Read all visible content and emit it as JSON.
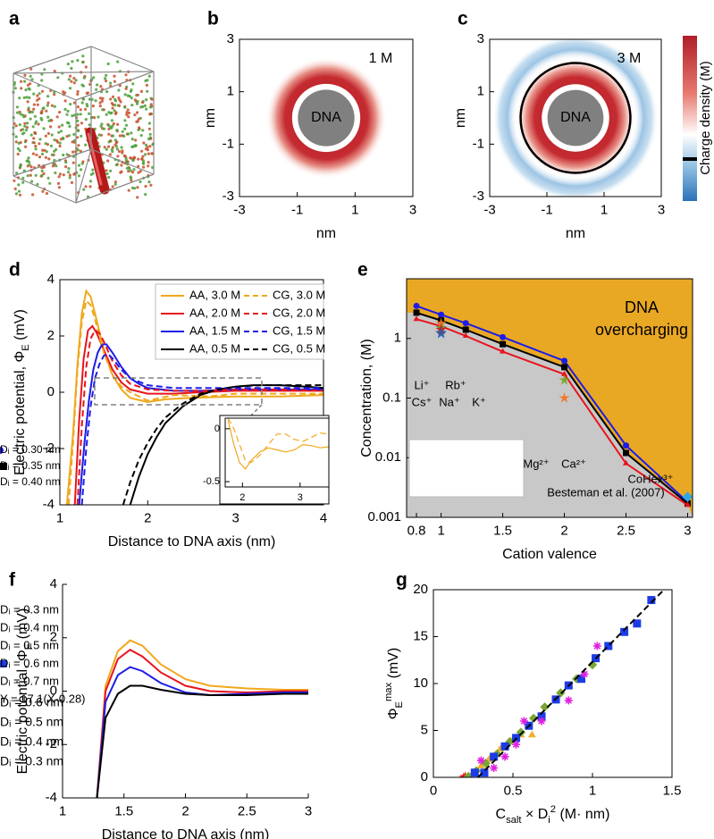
{
  "chart_data": [
    {
      "type": "render",
      "panel_label": "a"
    },
    {
      "type": "heatmap",
      "panel_label": "b",
      "label": "1 M",
      "center_label": "DNA",
      "xlabel": [
        {
          "text": "nm"
        }
      ],
      "ylabel": [
        {
          "text": "nm"
        }
      ],
      "xlim": [
        -3,
        3
      ],
      "ylim": [
        -3,
        3
      ],
      "xticks": [
        -3,
        -1,
        1,
        3
      ],
      "yticks": [
        -3,
        -1,
        1,
        3
      ],
      "halo": false
    },
    {
      "type": "heatmap",
      "panel_label": "c",
      "label": "3 M",
      "center_label": "DNA",
      "xlabel": [
        {
          "text": "nm"
        }
      ],
      "ylabel": [
        {
          "text": "nm"
        }
      ],
      "xlim": [
        -3,
        3
      ],
      "ylim": [
        -3,
        3
      ],
      "xticks": [
        -3,
        -1,
        1,
        3
      ],
      "yticks": [
        -3,
        -1,
        1,
        3
      ],
      "halo": true,
      "colorbar_label": "Charge density (M)"
    },
    {
      "type": "line",
      "panel_label": "d",
      "xlabel": [
        {
          "text": "Distance to DNA axis (nm)"
        }
      ],
      "ylabel": [
        {
          "text": "Electric potential, Φ"
        },
        {
          "text": "E",
          "shift": "sub"
        },
        {
          "text": " (mV)"
        }
      ],
      "xlim": [
        1,
        4
      ],
      "ylim": [
        -4,
        4
      ],
      "xticks": [
        1,
        2,
        3,
        4
      ],
      "yticks": [
        -4,
        -2,
        0,
        2,
        4
      ],
      "frame": "box",
      "series": [
        {
          "name": "AA, 3.0 M",
          "color": "#f0a81c",
          "dash": false,
          "x": [
            1.08,
            1.15,
            1.2,
            1.25,
            1.3,
            1.35,
            1.4,
            1.5,
            1.6,
            1.7,
            1.8,
            2.0,
            2.2,
            2.5,
            3.0,
            3.5,
            4.0
          ],
          "values": [
            -4,
            -1.5,
            1.0,
            2.8,
            3.6,
            3.4,
            2.8,
            1.5,
            0.6,
            0.1,
            -0.2,
            -0.35,
            -0.25,
            -0.2,
            -0.15,
            -0.15,
            -0.1
          ]
        },
        {
          "name": "AA, 2.0 M",
          "color": "#e8141c",
          "dash": false,
          "x": [
            1.17,
            1.22,
            1.27,
            1.32,
            1.37,
            1.42,
            1.5,
            1.6,
            1.7,
            1.8,
            2.0,
            2.3,
            2.6,
            3.0,
            3.5,
            4.0
          ],
          "values": [
            -4,
            -1.0,
            1.2,
            2.2,
            2.35,
            2.1,
            1.5,
            0.8,
            0.35,
            0.1,
            -0.05,
            -0.05,
            0,
            0.05,
            0.05,
            0.05
          ]
        },
        {
          "name": "AA, 1.5 M",
          "color": "#1c1ce8",
          "dash": false,
          "x": [
            1.22,
            1.28,
            1.33,
            1.38,
            1.43,
            1.48,
            1.53,
            1.6,
            1.7,
            1.8,
            1.9,
            2.0,
            2.3,
            2.6,
            3.0,
            3.5,
            4.0
          ],
          "values": [
            -4,
            -1.8,
            -0.3,
            0.8,
            1.4,
            1.7,
            1.7,
            1.4,
            0.9,
            0.5,
            0.3,
            0.15,
            0.05,
            0.05,
            0.1,
            0.1,
            0.1
          ]
        },
        {
          "name": "AA, 0.5 M",
          "color": "#000000",
          "dash": false,
          "x": [
            1.8,
            1.9,
            2.0,
            2.1,
            2.2,
            2.4,
            2.6,
            2.8,
            3.0,
            3.2,
            3.5,
            3.8,
            4.0
          ],
          "values": [
            -4,
            -3.0,
            -2.2,
            -1.6,
            -1.1,
            -0.5,
            -0.1,
            0.1,
            0.2,
            0.25,
            0.25,
            0.2,
            0.15
          ]
        },
        {
          "name": "CG, 3.0 M",
          "color": "#f0a81c",
          "dash": true,
          "x": [
            1.1,
            1.15,
            1.2,
            1.25,
            1.3,
            1.35,
            1.4,
            1.5,
            1.6,
            1.7,
            1.8,
            2.0,
            2.3,
            2.7,
            3.0,
            3.5,
            4.0
          ],
          "values": [
            -4,
            -1.8,
            0.8,
            2.5,
            3.25,
            3.1,
            2.6,
            1.4,
            0.6,
            0.2,
            0,
            -0.3,
            -0.1,
            -0.15,
            -0.05,
            -0.05,
            -0.05
          ]
        },
        {
          "name": "CG, 2.0 M",
          "color": "#e8141c",
          "dash": true,
          "x": [
            1.2,
            1.25,
            1.3,
            1.35,
            1.4,
            1.45,
            1.5,
            1.6,
            1.7,
            1.8,
            2.0,
            2.3,
            2.6,
            3.0,
            3.5,
            4.0
          ],
          "values": [
            -4,
            -1.2,
            0.9,
            1.9,
            2.2,
            2.1,
            1.8,
            1.1,
            0.6,
            0.3,
            0.1,
            0.05,
            0.05,
            0.1,
            0.1,
            0.05
          ]
        },
        {
          "name": "CG, 1.5 M",
          "color": "#1c1ce8",
          "dash": true,
          "x": [
            1.25,
            1.3,
            1.35,
            1.4,
            1.45,
            1.5,
            1.55,
            1.6,
            1.7,
            1.8,
            2.0,
            2.3,
            2.6,
            3.0,
            3.5,
            4.0
          ],
          "values": [
            -4,
            -2,
            -0.5,
            0.5,
            1.0,
            1.3,
            1.35,
            1.2,
            0.8,
            0.5,
            0.25,
            0.15,
            0.15,
            0.15,
            0.15,
            0.15
          ]
        },
        {
          "name": "CG, 0.5 M",
          "color": "#000000",
          "dash": true,
          "x": [
            1.72,
            1.8,
            1.9,
            2.0,
            2.1,
            2.2,
            2.4,
            2.6,
            2.8,
            3.0,
            3.3,
            3.6,
            4.0
          ],
          "values": [
            -4,
            -3.2,
            -2.4,
            -1.8,
            -1.3,
            -0.9,
            -0.4,
            -0.05,
            0.1,
            0.2,
            0.25,
            0.25,
            0.25
          ]
        }
      ]
    },
    {
      "type": "line",
      "inset": true,
      "xlim": [
        1.7,
        3.5
      ],
      "ylim": [
        -0.55,
        0.1
      ],
      "xticks": [
        2,
        3
      ],
      "yticks": [
        -0.5,
        0
      ],
      "frame": "box",
      "series": [
        {
          "color": "#f0a81c",
          "dash": false,
          "x": [
            1.75,
            1.85,
            1.95,
            2.05,
            2.15,
            2.3,
            2.45,
            2.6,
            2.75,
            2.9,
            3.05,
            3.2,
            3.35,
            3.5
          ],
          "values": [
            0.08,
            -0.15,
            -0.32,
            -0.38,
            -0.3,
            -0.22,
            -0.18,
            -0.2,
            -0.22,
            -0.2,
            -0.15,
            -0.16,
            -0.18,
            -0.17
          ]
        },
        {
          "color": "#f0a81c",
          "dash": true,
          "x": [
            1.75,
            1.85,
            1.95,
            2.05,
            2.15,
            2.3,
            2.45,
            2.6,
            2.75,
            2.9,
            3.05,
            3.2,
            3.35,
            3.5
          ],
          "values": [
            0.1,
            0,
            -0.15,
            -0.3,
            -0.32,
            -0.25,
            -0.15,
            -0.05,
            -0.05,
            -0.1,
            -0.12,
            -0.08,
            -0.04,
            -0.05
          ]
        }
      ]
    },
    {
      "type": "line",
      "panel_label": "e",
      "xlabel": [
        {
          "text": "Cation valence"
        }
      ],
      "ylabel": [
        {
          "text": "Concentration, (M)"
        }
      ],
      "xlim": [
        0.72,
        3.04
      ],
      "ylim": [
        0.001,
        10
      ],
      "ylog": true,
      "xticks": [
        0.8,
        1,
        1.5,
        2,
        2.5,
        3
      ],
      "yticks": [
        0.001,
        0.01,
        0.1,
        1
      ],
      "frame": "box",
      "region_label": [
        "DNA",
        "overcharging"
      ],
      "region_color": "#e9a823",
      "below_color": "#c8c8c8",
      "series": [
        {
          "name": "Dᵢ = 0.30 nm",
          "color": "#1c1ce8",
          "marker": "circle",
          "x": [
            0.8,
            1,
            1.2,
            1.5,
            2,
            2.5,
            3
          ],
          "values": [
            3.5,
            2.5,
            1.8,
            1.05,
            0.42,
            0.016,
            0.0018
          ]
        },
        {
          "name": "Dᵢ = 0.35 nm",
          "color": "#000000",
          "marker": "square",
          "x": [
            0.8,
            1,
            1.2,
            1.5,
            2,
            2.5,
            3
          ],
          "values": [
            2.7,
            2.0,
            1.4,
            0.8,
            0.33,
            0.012,
            0.0017
          ]
        },
        {
          "name": "Dᵢ = 0.40 nm",
          "color": "#e8141c",
          "marker": "triangle",
          "x": [
            0.8,
            1,
            1.2,
            1.5,
            2,
            2.5,
            3
          ],
          "values": [
            2.1,
            1.6,
            1.1,
            0.6,
            0.25,
            0.008,
            0.0016
          ]
        }
      ],
      "experiments": [
        {
          "name": "Li⁺",
          "x": 1,
          "y": 1.2,
          "color": "#1e6fd0",
          "marker": "star"
        },
        {
          "name": "Rb⁺",
          "x": 1,
          "y": 1.5,
          "color": "#3a9a3a",
          "marker": "star"
        },
        {
          "name": "Cs⁺",
          "x": 1,
          "y": 1.8,
          "color": "#e07020",
          "marker": "star"
        },
        {
          "name": "Na⁺",
          "x": 1,
          "y": 1.4,
          "color": "#d02020",
          "marker": "star"
        },
        {
          "name": "K⁺",
          "x": 1,
          "y": 1.25,
          "color": "#3a5a9a",
          "marker": "star"
        },
        {
          "name": "Mg²⁺",
          "x": 2,
          "y": 0.2,
          "color": "#7aa632",
          "marker": "star"
        },
        {
          "name": "Ca²⁺",
          "x": 2,
          "y": 0.1,
          "color": "#f07830",
          "marker": "star"
        },
        {
          "name": "CoHex³⁺",
          "x": 3,
          "y": 0.0022,
          "color": "#30a8e0",
          "marker": "diamond"
        }
      ],
      "source": "Besteman et al. (2007)"
    },
    {
      "type": "line",
      "panel_label": "f",
      "xlabel": [
        {
          "text": "Distance to DNA axis (nm)"
        }
      ],
      "ylabel": [
        {
          "text": "Electric potential, Φ"
        },
        {
          "text": "E",
          "shift": "sub"
        },
        {
          "text": " (mV)"
        }
      ],
      "xlim": [
        1,
        3
      ],
      "ylim": [
        -4,
        4
      ],
      "xticks": [
        1,
        1.5,
        2,
        2.5,
        3
      ],
      "yticks": [
        -4,
        -2,
        0,
        2,
        4
      ],
      "frame": "axes",
      "x": [
        1.28,
        1.35,
        1.45,
        1.55,
        1.65,
        1.8,
        2.0,
        2.2,
        2.5,
        2.8,
        3.0
      ],
      "series": [
        {
          "name": "Dᵢ = 0.6 nm",
          "color": "#f0a81c",
          "values": [
            -4,
            0.2,
            1.5,
            1.9,
            1.7,
            1.0,
            0.45,
            0.2,
            0.1,
            0.05,
            0.05
          ]
        },
        {
          "name": "Dᵢ = 0.5 nm",
          "color": "#e8141c",
          "values": [
            -4,
            0,
            1.2,
            1.55,
            1.3,
            0.7,
            0.2,
            0,
            -0.05,
            0,
            0
          ]
        },
        {
          "name": "Dᵢ = 0.4 nm",
          "color": "#1c1ce8",
          "values": [
            -4,
            -0.4,
            0.6,
            0.9,
            0.75,
            0.3,
            -0.05,
            -0.15,
            -0.1,
            -0.05,
            -0.05
          ]
        },
        {
          "name": "Dᵢ = 0.3 nm",
          "color": "#000000",
          "values": [
            -4,
            -1.0,
            -0.1,
            0.2,
            0.2,
            0.05,
            -0.1,
            -0.15,
            -0.15,
            -0.1,
            -0.1
          ]
        }
      ]
    },
    {
      "type": "scatter",
      "panel_label": "g",
      "xlabel": [
        {
          "text": "C"
        },
        {
          "text": "salt",
          "shift": "sub"
        },
        {
          "text": " × D"
        },
        {
          "text": "i",
          "shift": "sub"
        },
        {
          "text": "2",
          "shift": "super"
        },
        {
          "text": " (M· nm)"
        }
      ],
      "ylabel": [
        {
          "text": "Φ"
        },
        {
          "text": "E",
          "shift": "sub"
        },
        {
          "text": "max",
          "shift": "super"
        },
        {
          "text": " (mV)"
        }
      ],
      "xlim": [
        0,
        1.5
      ],
      "ylim": [
        0,
        20
      ],
      "xticks": [
        0,
        0.5,
        1,
        1.5
      ],
      "yticks": [
        0,
        5,
        10,
        15,
        20
      ],
      "frame": "box",
      "series": [
        {
          "name": "Dᵢ = 0.3 nm",
          "color": "#e8141c",
          "marker": "star",
          "x": [
            0.19,
            0.2
          ],
          "values": [
            0,
            0.1
          ]
        },
        {
          "name": "Dᵢ = 0.4 nm",
          "color": "#f0b030",
          "marker": "triangle",
          "x": [
            0.25,
            0.3,
            0.35,
            0.42,
            0.5,
            0.55,
            0.62
          ],
          "values": [
            0.5,
            1.2,
            1.9,
            3.0,
            4.0,
            4.5,
            4.5
          ]
        },
        {
          "name": "Dᵢ = 0.5 nm",
          "color": "#7aa632",
          "marker": "diamond",
          "x": [
            0.22,
            0.27,
            0.33,
            0.4,
            0.48,
            0.55,
            0.63,
            0.7,
            0.8,
            0.9,
            1.0
          ],
          "values": [
            0.1,
            0.7,
            1.5,
            2.5,
            3.8,
            4.8,
            6.3,
            7.5,
            9.0,
            10.5,
            12.0
          ]
        },
        {
          "name": "Dᵢ = 0.6 nm",
          "color": "#1c3ce8",
          "marker": "square",
          "x": [
            0.26,
            0.32,
            0.38,
            0.45,
            0.52,
            0.6,
            0.68,
            0.77,
            0.85,
            0.93,
            1.02,
            1.1,
            1.2,
            1.28,
            1.37
          ],
          "values": [
            0.5,
            0.5,
            2.2,
            3.3,
            4.2,
            5.5,
            6.5,
            8.3,
            9.8,
            10.5,
            12.7,
            14.0,
            15.5,
            16.4,
            18.9
          ]
        },
        {
          "name": "Dᵢ = 0.7 nm",
          "color": "#e020e0",
          "marker": "asterisk",
          "x": [
            0.3,
            0.38,
            0.45,
            0.52,
            0.57,
            0.68,
            0.85,
            0.95,
            1.03
          ],
          "values": [
            1.8,
            1.0,
            2.2,
            3.5,
            6.0,
            6.0,
            8.2,
            11.0,
            14.0
          ]
        },
        {
          "name": "Y = 17.1(X-0.28)",
          "color": "#000000",
          "dash": true,
          "mode": "line",
          "x": [
            0.28,
            1.45
          ],
          "values": [
            0,
            20
          ]
        }
      ]
    }
  ]
}
